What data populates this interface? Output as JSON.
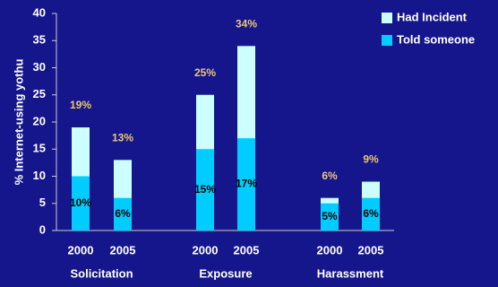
{
  "chart_data": {
    "type": "bar",
    "overlap": true,
    "y_label": "% Internet-using yothu",
    "categories": [
      "2000",
      "2005",
      "2000",
      "2005",
      "2000",
      "2005"
    ],
    "groups": [
      "Solicitation",
      "Exposure",
      "Harassment"
    ],
    "series": [
      {
        "name": "Had Incident",
        "color": "#ccffff",
        "label_color": "#e8c870",
        "values": [
          19,
          13,
          25,
          34,
          6,
          9
        ],
        "value_labels": [
          "19%",
          "13%",
          "25%",
          "34%",
          "6%",
          "9%"
        ]
      },
      {
        "name": "Told someone",
        "color": "#00ccff",
        "label_color": "#000000",
        "values": [
          10,
          6,
          15,
          17,
          5,
          6
        ],
        "value_labels": [
          "10%",
          "6%",
          "15%",
          "17%",
          "5%",
          "6%"
        ]
      }
    ],
    "ylim": [
      0,
      40
    ],
    "yticks": [
      0,
      5,
      10,
      15,
      20,
      25,
      30,
      35,
      40
    ],
    "legend": "top-right"
  }
}
